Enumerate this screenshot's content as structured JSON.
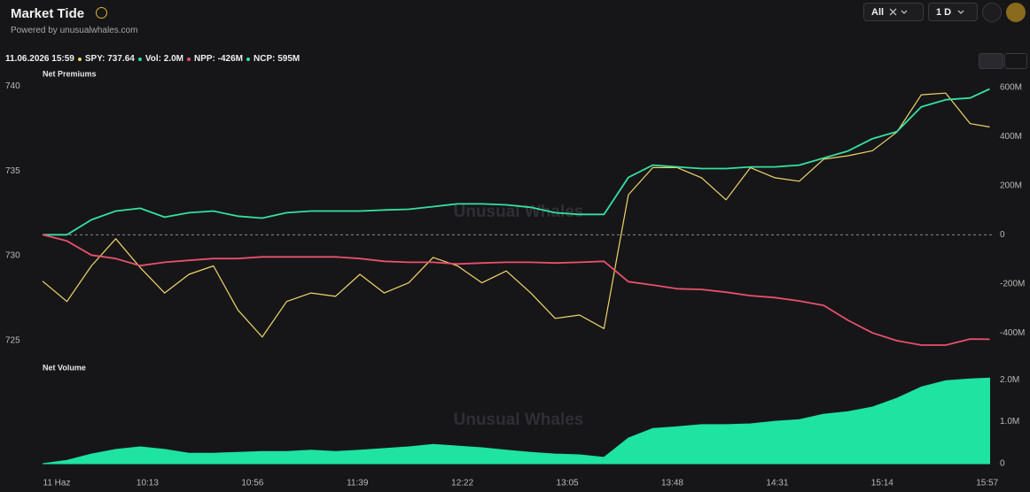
{
  "header": {
    "title": "Market Tide",
    "subtitle": "Powered by unusualwhales.com",
    "filter": "All",
    "period": "1 D",
    "status": [
      "11.06.2026 15:59",
      "SPY: 737.64",
      "Vol: 2.0M",
      "NPP: -426M",
      "NCP: 595M"
    ],
    "watermark": "Unusual Whales"
  },
  "chart_data": [
    {
      "type": "line",
      "title": "Net Premiums",
      "x": [
        "09:30",
        "09:40",
        "09:50",
        "10:00",
        "10:10",
        "10:20",
        "10:30",
        "10:40",
        "10:50",
        "11:00",
        "11:10",
        "11:20",
        "11:30",
        "11:40",
        "11:50",
        "12:00",
        "12:10",
        "12:20",
        "12:30",
        "12:40",
        "12:50",
        "13:00",
        "13:10",
        "13:20",
        "13:30",
        "13:40",
        "13:50",
        "14:00",
        "14:10",
        "14:20",
        "14:30",
        "14:40",
        "14:50",
        "15:00",
        "15:10",
        "15:20",
        "15:30",
        "15:40",
        "15:50",
        "15:58"
      ],
      "xlim": [
        "09:30",
        "16:00"
      ],
      "series": [
        {
          "color": "#f2d46b",
          "values": [
            728.5,
            727.3,
            729.4,
            731.0,
            729.3,
            727.8,
            728.9,
            729.4,
            726.8,
            725.2,
            727.3,
            727.8,
            727.6,
            728.9,
            727.8,
            728.4,
            729.9,
            729.4,
            728.4,
            729.1,
            727.8,
            726.3,
            726.5,
            725.7,
            733.6,
            735.2,
            735.2,
            734.6,
            733.3,
            735.2,
            734.6,
            734.4,
            735.7,
            735.9,
            736.2,
            737.3,
            739.5,
            739.6,
            737.8,
            737.6
          ]
        },
        {
          "color": "#35e0a1",
          "axis": "y2",
          "values": [
            0,
            0,
            61,
            97,
            108,
            72,
            90,
            97,
            76,
            68,
            90,
            97,
            97,
            97,
            101,
            104,
            115,
            126,
            126,
            122,
            112,
            90,
            83,
            83,
            234,
            284,
            277,
            270,
            270,
            277,
            277,
            284,
            313,
            342,
            392,
            421,
            522,
            551,
            558,
            595
          ]
        },
        {
          "color": "#e9506d",
          "axis": "y2",
          "values": [
            0,
            -25,
            -83,
            -97,
            -126,
            -112,
            -104,
            -97,
            -97,
            -90,
            -90,
            -90,
            -90,
            -97,
            -108,
            -112,
            -112,
            -119,
            -115,
            -112,
            -112,
            -115,
            -112,
            -108,
            -191,
            -205,
            -220,
            -223,
            -234,
            -248,
            -256,
            -270,
            -288,
            -349,
            -400,
            -432,
            -450,
            -450,
            -425,
            -426
          ]
        }
      ],
      "ylim": [
        724.2,
        740.5
      ],
      "yticks": [
        725,
        730,
        735,
        740
      ],
      "y2lim": [
        -486,
        640
      ],
      "y2ticks": [
        {
          "value": -400,
          "label": "-400M"
        },
        {
          "value": -200,
          "label": "-200M"
        },
        0,
        {
          "value": 200,
          "label": "200M"
        },
        {
          "value": 400,
          "label": "400M"
        },
        {
          "value": 600,
          "label": "600M"
        }
      ]
    },
    {
      "type": "area",
      "title": "Net Volume",
      "color": "#1fe3a0",
      "x": [
        "09:30",
        "09:40",
        "09:50",
        "10:00",
        "10:10",
        "10:20",
        "10:30",
        "10:40",
        "10:50",
        "11:00",
        "11:10",
        "11:20",
        "11:30",
        "11:40",
        "11:50",
        "12:00",
        "12:10",
        "12:20",
        "12:30",
        "12:40",
        "12:50",
        "13:00",
        "13:10",
        "13:20",
        "13:30",
        "13:40",
        "13:50",
        "14:00",
        "14:10",
        "14:20",
        "14:30",
        "14:40",
        "14:50",
        "15:00",
        "15:10",
        "15:20",
        "15:30",
        "15:40",
        "15:50",
        "15:58"
      ],
      "xlim": [
        "09:30",
        "16:00"
      ],
      "values": [
        0,
        0.08,
        0.23,
        0.34,
        0.4,
        0.34,
        0.25,
        0.25,
        0.27,
        0.29,
        0.29,
        0.32,
        0.29,
        0.32,
        0.36,
        0.4,
        0.46,
        0.42,
        0.38,
        0.32,
        0.27,
        0.23,
        0.21,
        0.15,
        0.61,
        0.84,
        0.88,
        0.93,
        0.93,
        0.95,
        1.01,
        1.05,
        1.18,
        1.24,
        1.35,
        1.56,
        1.83,
        1.98,
        2.02,
        2.04
      ],
      "ylim": [
        0,
        2.3
      ],
      "yticks": [
        0,
        {
          "value": 1,
          "label": "1.0M"
        },
        {
          "value": 2,
          "label": "2.0M"
        }
      ],
      "xticks": [
        {
          "value": "09:30",
          "label": "11 Haz"
        },
        "10:13",
        "10:56",
        "11:39",
        "12:22",
        "13:05",
        "13:48",
        "14:31",
        "15:14",
        "15:57"
      ]
    }
  ]
}
